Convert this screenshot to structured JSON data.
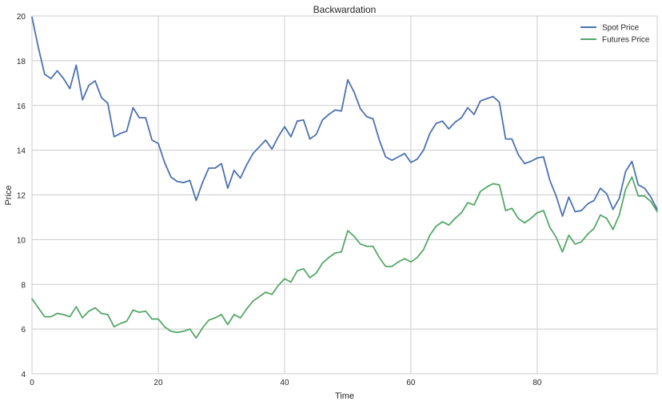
{
  "chart_data": {
    "type": "line",
    "title": "Backwardation",
    "xlabel": "Time",
    "ylabel": "Price",
    "xlim": [
      0,
      99
    ],
    "ylim": [
      4,
      20
    ],
    "xticks": [
      0,
      20,
      40,
      60,
      80
    ],
    "yticks": [
      4,
      6,
      8,
      10,
      12,
      14,
      16,
      18,
      20
    ],
    "grid": true,
    "legend_position": "top-right",
    "series": [
      {
        "name": "Spot Price",
        "color": "#4c72b0",
        "values": [
          19.95,
          18.6,
          17.4,
          17.2,
          17.55,
          17.2,
          16.75,
          17.8,
          16.25,
          16.9,
          17.1,
          16.35,
          16.1,
          14.6,
          14.75,
          14.85,
          15.9,
          15.45,
          15.45,
          14.45,
          14.3,
          13.45,
          12.8,
          12.6,
          12.55,
          12.65,
          11.75,
          12.55,
          13.2,
          13.2,
          13.4,
          12.3,
          13.1,
          12.75,
          13.35,
          13.85,
          14.15,
          14.45,
          14.05,
          14.6,
          15.05,
          14.6,
          15.3,
          15.35,
          14.5,
          14.7,
          15.35,
          15.6,
          15.8,
          15.75,
          17.15,
          16.6,
          15.85,
          15.5,
          15.4,
          14.45,
          13.7,
          13.55,
          13.7,
          13.85,
          13.45,
          13.6,
          14.0,
          14.75,
          15.2,
          15.3,
          14.95,
          15.25,
          15.45,
          15.9,
          15.6,
          16.2,
          16.3,
          16.4,
          16.15,
          14.5,
          14.5,
          13.8,
          13.4,
          13.5,
          13.65,
          13.7,
          12.65,
          11.95,
          11.05,
          11.9,
          11.25,
          11.3,
          11.6,
          11.75,
          12.3,
          12.05,
          11.35,
          11.85,
          13.05,
          13.5,
          12.45,
          12.3,
          11.9,
          11.35
        ]
      },
      {
        "name": "Futures Price",
        "color": "#55a868",
        "values": [
          7.35,
          6.95,
          6.55,
          6.55,
          6.7,
          6.65,
          6.55,
          7.0,
          6.5,
          6.8,
          6.95,
          6.7,
          6.65,
          6.1,
          6.25,
          6.35,
          6.85,
          6.75,
          6.8,
          6.45,
          6.45,
          6.1,
          5.9,
          5.85,
          5.9,
          6.0,
          5.6,
          6.05,
          6.4,
          6.5,
          6.65,
          6.2,
          6.65,
          6.5,
          6.9,
          7.25,
          7.45,
          7.65,
          7.55,
          7.95,
          8.25,
          8.1,
          8.6,
          8.7,
          8.3,
          8.5,
          8.95,
          9.2,
          9.4,
          9.45,
          10.4,
          10.15,
          9.8,
          9.7,
          9.7,
          9.2,
          8.8,
          8.8,
          9.0,
          9.15,
          9.0,
          9.2,
          9.55,
          10.2,
          10.6,
          10.8,
          10.65,
          10.95,
          11.2,
          11.65,
          11.55,
          12.15,
          12.35,
          12.5,
          12.45,
          11.3,
          11.4,
          10.95,
          10.75,
          10.95,
          11.2,
          11.3,
          10.55,
          10.1,
          9.45,
          10.2,
          9.8,
          9.9,
          10.25,
          10.5,
          11.1,
          10.95,
          10.45,
          11.1,
          12.25,
          12.8,
          11.95,
          11.95,
          11.7,
          11.25
        ]
      }
    ]
  }
}
